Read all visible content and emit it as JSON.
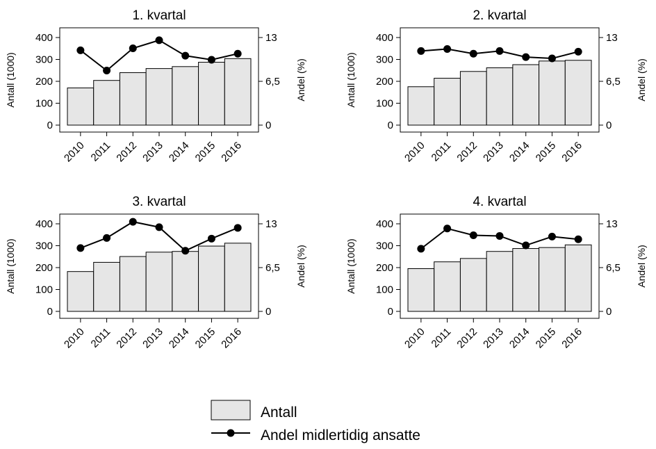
{
  "legend": {
    "bar_label": "Antall",
    "line_label": "Andel midlertidig ansatte"
  },
  "chart_data": [
    {
      "type": "bar",
      "title": "1. kvartal",
      "categories": [
        "2010",
        "2011",
        "2012",
        "2013",
        "2014",
        "2015",
        "2016"
      ],
      "ylabel": "Antall (1000)",
      "y2label": "Andel (%)",
      "ylim": [
        0,
        430
      ],
      "y2lim": [
        0,
        13.975
      ],
      "yticks": [
        0,
        100,
        200,
        300,
        400
      ],
      "y2ticks": [
        0,
        6.5,
        13
      ],
      "y2ticklabels": [
        "0",
        "6,5",
        "13"
      ],
      "series": [
        {
          "name": "Antall",
          "kind": "bar",
          "axis": "left",
          "values": [
            182,
            213,
            245,
            262,
            270,
            288,
            303
          ]
        },
        {
          "name": "Andel midlertidig ansatte",
          "kind": "line",
          "axis": "right",
          "values": [
            11.1,
            8.1,
            11.4,
            12.6,
            10.3,
            9.7,
            10.6
          ]
        }
      ]
    },
    {
      "type": "bar",
      "title": "2. kvartal",
      "categories": [
        "2010",
        "2011",
        "2012",
        "2013",
        "2014",
        "2015",
        "2016"
      ],
      "ylabel": "Antall (1000)",
      "y2label": "Andel (%)",
      "ylim": [
        0,
        430
      ],
      "y2lim": [
        0,
        13.975
      ],
      "yticks": [
        0,
        100,
        200,
        300,
        400
      ],
      "y2ticks": [
        0,
        6.5,
        13
      ],
      "y2ticklabels": [
        "0",
        "6,5",
        "13"
      ],
      "series": [
        {
          "name": "Antall",
          "kind": "bar",
          "axis": "left",
          "values": [
            187,
            222,
            250,
            265,
            278,
            293,
            296
          ]
        },
        {
          "name": "Andel midlertidig ansatte",
          "kind": "line",
          "axis": "right",
          "values": [
            11.0,
            11.3,
            10.6,
            11.0,
            10.1,
            9.9,
            10.9
          ]
        }
      ]
    },
    {
      "type": "bar",
      "title": "3. kvartal",
      "categories": [
        "2010",
        "2011",
        "2012",
        "2013",
        "2014",
        "2015",
        "2016"
      ],
      "ylabel": "Antall (1000)",
      "y2label": "Andel (%)",
      "ylim": [
        0,
        430
      ],
      "y2lim": [
        0,
        13.975
      ],
      "yticks": [
        0,
        100,
        200,
        300,
        400
      ],
      "y2ticks": [
        0,
        6.5,
        13
      ],
      "y2ticklabels": [
        "0",
        "6,5",
        "13"
      ],
      "series": [
        {
          "name": "Antall",
          "kind": "bar",
          "axis": "left",
          "values": [
            193,
            231,
            255,
            273,
            276,
            298,
            310
          ]
        },
        {
          "name": "Andel midlertidig ansatte",
          "kind": "line",
          "axis": "right",
          "values": [
            9.4,
            10.9,
            13.3,
            12.5,
            9.0,
            10.8,
            12.4
          ]
        }
      ]
    },
    {
      "type": "bar",
      "title": "4. kvartal",
      "categories": [
        "2010",
        "2011",
        "2012",
        "2013",
        "2014",
        "2015",
        "2016"
      ],
      "ylabel": "Antall (1000)",
      "y2label": "Andel (%)",
      "ylim": [
        0,
        430
      ],
      "y2lim": [
        0,
        13.975
      ],
      "yticks": [
        0,
        100,
        200,
        300,
        400
      ],
      "y2ticks": [
        0,
        6.5,
        13
      ],
      "y2ticklabels": [
        "0",
        "6,5",
        "13"
      ],
      "series": [
        {
          "name": "Antall",
          "kind": "bar",
          "axis": "left",
          "values": [
            205,
            233,
            247,
            276,
            288,
            292,
            303
          ]
        },
        {
          "name": "Andel midlertidig ansatte",
          "kind": "line",
          "axis": "right",
          "values": [
            9.3,
            12.3,
            11.3,
            11.2,
            9.8,
            11.1,
            10.7
          ]
        }
      ]
    }
  ],
  "colors": {
    "bar_fill": "#e6e6e6",
    "bar_stroke": "#000000",
    "line": "#000000",
    "background": "#ffffff"
  }
}
